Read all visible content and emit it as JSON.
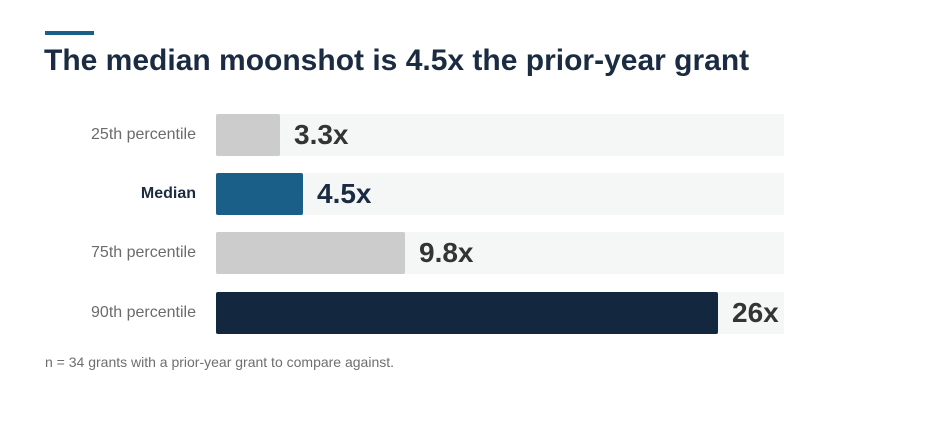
{
  "chart_data": {
    "type": "bar",
    "orientation": "horizontal",
    "title": "The median moonshot is 4.5x the prior-year grant",
    "categories": [
      "25th percentile",
      "Median",
      "75th percentile",
      "90th percentile"
    ],
    "values": [
      3.3,
      4.5,
      9.8,
      26
    ],
    "value_labels": [
      "3.3x",
      "4.5x",
      "9.8x",
      "26x"
    ],
    "highlighted": [
      "Median"
    ],
    "colors": [
      "#cccccc",
      "#1a5f87",
      "#cccccc",
      "#13283f"
    ],
    "xlim": [
      0,
      26
    ],
    "grid": false,
    "legend": "none"
  },
  "footnote": "n = 34 grants with a prior-year grant to compare against.",
  "colors": {
    "accent": "#1a5f87",
    "title": "#1b2b42",
    "track": "#f5f6f6"
  }
}
